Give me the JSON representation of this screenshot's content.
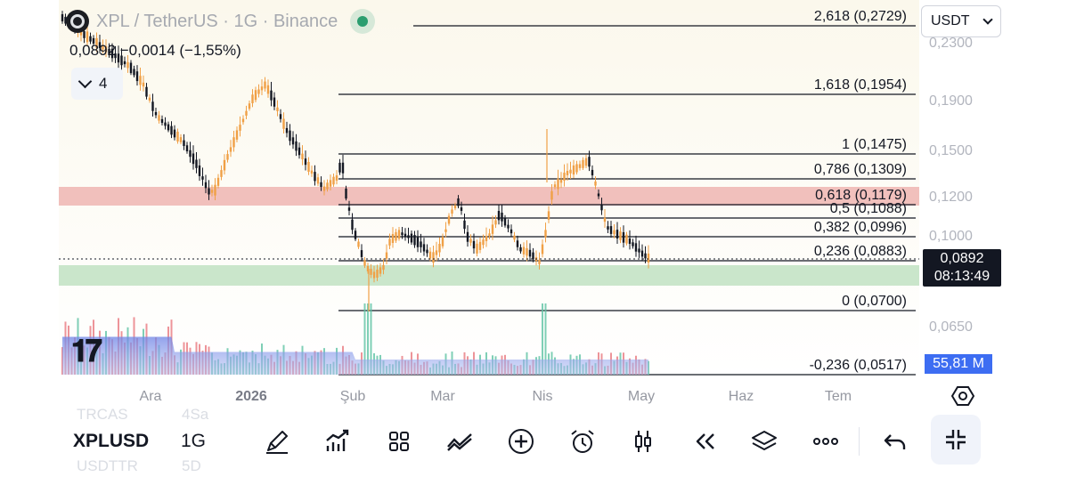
{
  "header": {
    "symbol_title": "XPL / TetherUS · 1G · Binance",
    "ohlc": "0,0892  −0,0014 (−1,55%)",
    "indicator_count": "4",
    "currency": "USDT"
  },
  "price_axis": {
    "ticks": [
      "0,2300",
      "0,1900",
      "0,1500",
      "0,1200",
      "0,1000",
      "0,0650"
    ],
    "current_price": "0,0892",
    "countdown": "08:13:49",
    "volume": "55,81 M"
  },
  "time_axis": {
    "labels": [
      "Ara",
      "2026",
      "Şub",
      "Mar",
      "Nis",
      "May",
      "Haz",
      "Tem"
    ]
  },
  "fib_levels": [
    {
      "label": "2,618 (0,2729)",
      "price": 0.2729
    },
    {
      "label": "1,618 (0,1954)",
      "price": 0.1954
    },
    {
      "label": "1 (0,1475)",
      "price": 0.1475
    },
    {
      "label": "0,786 (0,1309)",
      "price": 0.1309
    },
    {
      "label": "0,618 (0,1179)",
      "price": 0.1179
    },
    {
      "label": "0,5 (0,1088)",
      "price": 0.1088
    },
    {
      "label": "0,382 (0,0996)",
      "price": 0.0996
    },
    {
      "label": "0,236 (0,0883)",
      "price": 0.0883
    },
    {
      "label": "0 (0,0700)",
      "price": 0.07
    },
    {
      "label": "-0,236 (0,0517)",
      "price": 0.0517
    }
  ],
  "toolbar": {
    "symbol": "XPLUSD",
    "timeframe": "1G",
    "ghost_top": [
      "TRCAS",
      "4Sa"
    ],
    "ghost_bottom": [
      "USDTTR",
      "5D"
    ]
  },
  "colors": {
    "up": "#f0a046",
    "down": "#131722",
    "resistance_zone": "#eeb5b2",
    "support_zone": "#c4e3c5",
    "volume_area": "#7b8fe8"
  }
}
